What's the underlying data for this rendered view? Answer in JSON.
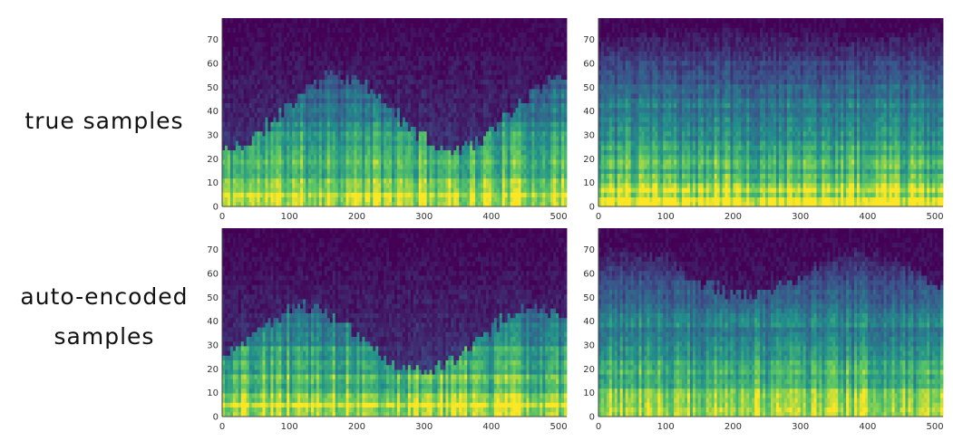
{
  "row_labels": {
    "true": "true samples",
    "auto_line1": "auto-encoded",
    "auto_line2": "samples"
  },
  "colormap": [
    "#440154",
    "#3b528b",
    "#21918c",
    "#5ec962",
    "#fde725"
  ],
  "chart_data": [
    {
      "type": "heatmap",
      "id": "true-sample-1",
      "xlim": [
        0,
        512
      ],
      "ylim": [
        0,
        79
      ],
      "xticks": [
        0,
        100,
        200,
        300,
        400,
        500
      ],
      "yticks": [
        0,
        10,
        20,
        30,
        40,
        50,
        60,
        70
      ],
      "grid": false
    },
    {
      "type": "heatmap",
      "id": "true-sample-2",
      "xlim": [
        0,
        512
      ],
      "ylim": [
        0,
        79
      ],
      "xticks": [
        0,
        100,
        200,
        300,
        400,
        500
      ],
      "yticks": [
        0,
        10,
        20,
        30,
        40,
        50,
        60,
        70
      ],
      "grid": false
    },
    {
      "type": "heatmap",
      "id": "auto-encoded-sample-1",
      "xlim": [
        0,
        512
      ],
      "ylim": [
        0,
        79
      ],
      "xticks": [
        0,
        100,
        200,
        300,
        400,
        500
      ],
      "yticks": [
        0,
        10,
        20,
        30,
        40,
        50,
        60,
        70
      ],
      "grid": false
    },
    {
      "type": "heatmap",
      "id": "auto-encoded-sample-2",
      "xlim": [
        0,
        512
      ],
      "ylim": [
        0,
        79
      ],
      "xticks": [
        0,
        100,
        200,
        300,
        400,
        500
      ],
      "yticks": [
        0,
        10,
        20,
        30,
        40,
        50,
        60,
        70
      ],
      "grid": false
    }
  ]
}
